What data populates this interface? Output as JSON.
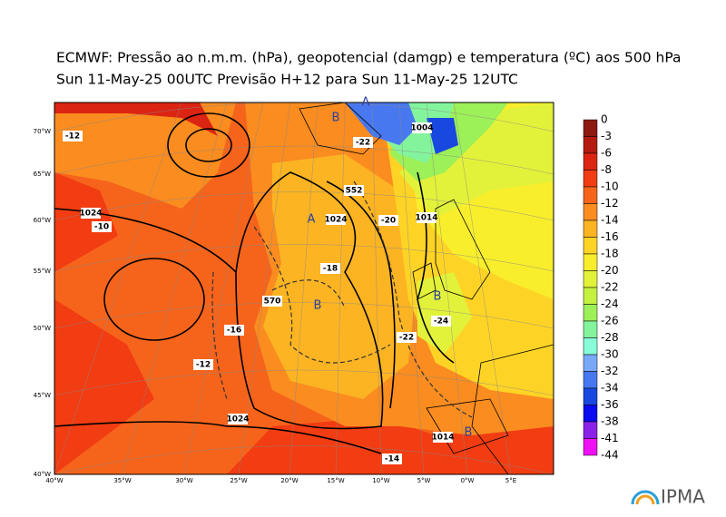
{
  "header": {
    "title": "ECMWF:  Pressão ao n.m.m. (hPa), geopotencial (damgp) e temperatura (ºC) aos 500 hPa",
    "subtitle": "Sun 11-May-25 00UTC Previsão H+12 para Sun 11-May-25 12UTC"
  },
  "colorbar": {
    "labels": [
      "0",
      "-3",
      "-6",
      "-8",
      "-10",
      "-12",
      "-14",
      "-16",
      "-18",
      "-20",
      "-22",
      "-24",
      "-26",
      "-28",
      "-30",
      "-32",
      "-34",
      "-36",
      "-38",
      "-41",
      "-44"
    ],
    "colors": [
      "#5c0e08",
      "#8c1a10",
      "#b41a10",
      "#dc2412",
      "#f23c12",
      "#f6641c",
      "#fa8c20",
      "#fcb422",
      "#fdd426",
      "#f8ee2c",
      "#e2f23a",
      "#c4f040",
      "#9cf058",
      "#84f49c",
      "#88fcd8",
      "#78a8f8",
      "#4878f0",
      "#1848e0",
      "#0a0af0",
      "#8a22e8",
      "#f010f4"
    ]
  },
  "lat_labels": [
    "70°W",
    "65°W",
    "60°W",
    "55°W",
    "50°W",
    "45°W",
    "40°W"
  ],
  "lon_labels": [
    "40°W",
    "35°W",
    "30°W",
    "25°W",
    "20°W",
    "15°W",
    "10°W",
    "5°W",
    "0°W",
    "5°E"
  ],
  "map_labels": [
    "A",
    "B",
    "A",
    "B",
    "B",
    "B",
    "1024",
    "1024",
    "1024",
    "1014",
    "1014",
    "1004",
    "-10",
    "-12",
    "-12",
    "-14",
    "-16",
    "-18",
    "-20",
    "-22",
    "-22",
    "-24",
    "570",
    "552"
  ],
  "logo": "IPMA"
}
